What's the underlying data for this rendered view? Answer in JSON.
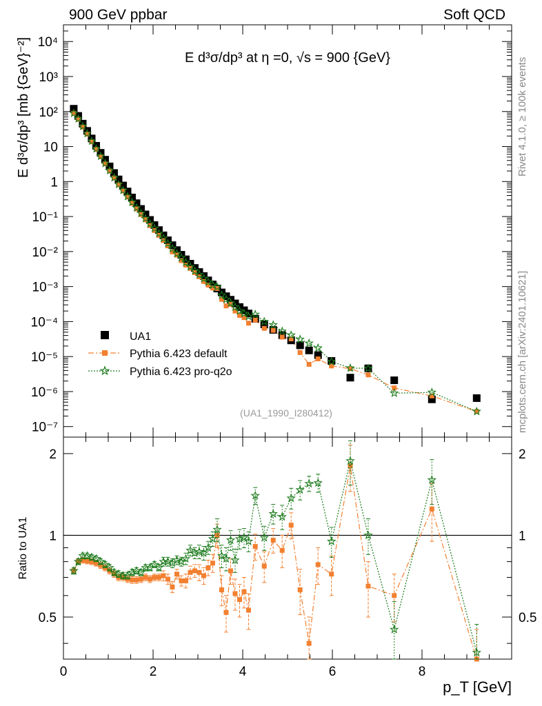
{
  "header": {
    "left": "900 GeV ppbar",
    "right": "Soft QCD"
  },
  "side_labels": {
    "rivet": "Rivet 4.1.0, ≥ 100k events",
    "source": "mcplots.cern.ch [arXiv:2401.10621]"
  },
  "chart_data": [
    {
      "type": "scatter",
      "panel": "main",
      "title": "E d³σ/dp³ at η =0, √s = 900 {GeV}",
      "watermark": "(UA1_1990_I280412)",
      "ylabel": "E d³σ/dp³ [mb {GeV}⁻²]",
      "xlim": [
        0,
        10
      ],
      "ylim": [
        5e-08,
        30000.0
      ],
      "yscale": "log",
      "y_tick_labels": [
        "10⁻⁷",
        "10⁻⁶",
        "10⁻⁵",
        "10⁻⁴",
        "10⁻³",
        "10⁻²",
        "10⁻¹",
        "1",
        "10",
        "10²",
        "10³",
        "10⁴"
      ],
      "y_tick_values": [
        1e-07,
        1e-06,
        1e-05,
        0.0001,
        0.001,
        0.01,
        0.1,
        1,
        10,
        100,
        1000,
        10000
      ],
      "legend_position": "bottom-left",
      "x": [
        0.23,
        0.33,
        0.43,
        0.53,
        0.63,
        0.73,
        0.83,
        0.93,
        1.03,
        1.13,
        1.23,
        1.33,
        1.43,
        1.53,
        1.63,
        1.73,
        1.83,
        1.93,
        2.03,
        2.13,
        2.23,
        2.33,
        2.43,
        2.53,
        2.63,
        2.73,
        2.83,
        2.93,
        3.03,
        3.13,
        3.23,
        3.33,
        3.43,
        3.53,
        3.63,
        3.73,
        3.83,
        3.93,
        4.03,
        4.13,
        4.28,
        4.48,
        4.68,
        4.88,
        5.08,
        5.28,
        5.48,
        5.68,
        5.98,
        6.4,
        6.8,
        7.38,
        8.22,
        9.22
      ],
      "series": [
        {
          "name": "UA1",
          "marker": "square",
          "color": "#000000",
          "values": [
            120,
            75,
            45,
            28,
            17,
            10.5,
            6.6,
            4.2,
            2.7,
            1.75,
            1.15,
            0.77,
            0.52,
            0.35,
            0.24,
            0.165,
            0.115,
            0.08,
            0.057,
            0.041,
            0.029,
            0.021,
            0.0152,
            0.011,
            0.0081,
            0.006,
            0.0045,
            0.0034,
            0.0026,
            0.002,
            0.0015,
            0.00115,
            0.00088,
            0.00068,
            0.00053,
            0.00042,
            0.00033,
            0.00026,
            0.00021,
            0.00017,
            0.00012,
            8.3e-05,
            5.8e-05,
            4.1e-05,
            2.9e-05,
            2.1e-05,
            1.5e-05,
            1.1e-05,
            7.5e-06,
            2.5e-06,
            4.6e-06,
            2.1e-06,
            6e-07,
            6.5e-07
          ]
        },
        {
          "name": "Pythia 6.423 default",
          "marker": "square-small",
          "color": "#f28030",
          "line": "dashdot",
          "values": [
            89,
            60,
            36,
            22.6,
            13.6,
            8.3,
            5.1,
            3.2,
            2.0,
            1.26,
            0.81,
            0.54,
            0.36,
            0.24,
            0.165,
            0.114,
            0.081,
            0.055,
            0.04,
            0.029,
            0.0206,
            0.0145,
            0.0098,
            0.0079,
            0.0055,
            0.0041,
            0.0033,
            0.0025,
            0.0019,
            0.0014,
            0.0011,
            0.00091,
            0.00088,
            0.00043,
            0.00028,
            0.00031,
            0.0002,
            0.00015,
            0.00013,
            9e-05,
            0.00011,
            6.4e-05,
            5.6e-05,
            3.6e-05,
            3.2e-05,
            1.3e-05,
            6e-06,
            8.6e-06,
            5.4e-06,
            4.5e-06,
            3e-06,
            1.27e-06,
            7.5e-07,
            2.7e-07
          ],
          "ratio": [
            0.74,
            0.8,
            0.81,
            0.805,
            0.8,
            0.79,
            0.775,
            0.76,
            0.74,
            0.72,
            0.7,
            0.7,
            0.69,
            0.685,
            0.685,
            0.69,
            0.7,
            0.69,
            0.7,
            0.7,
            0.71,
            0.69,
            0.645,
            0.72,
            0.68,
            0.68,
            0.73,
            0.74,
            0.73,
            0.71,
            0.76,
            0.79,
            1.0,
            0.63,
            0.52,
            0.74,
            0.61,
            0.58,
            0.62,
            0.53,
            0.91,
            0.77,
            0.96,
            0.88,
            1.09,
            0.63,
            0.4,
            0.78,
            0.72,
            1.8,
            0.65,
            0.6,
            1.25,
            0.35
          ],
          "ratio_err": [
            0.02,
            0.02,
            0.02,
            0.02,
            0.02,
            0.02,
            0.02,
            0.02,
            0.02,
            0.02,
            0.02,
            0.02,
            0.02,
            0.02,
            0.02,
            0.02,
            0.02,
            0.02,
            0.02,
            0.02,
            0.03,
            0.03,
            0.03,
            0.03,
            0.03,
            0.04,
            0.04,
            0.04,
            0.05,
            0.05,
            0.05,
            0.06,
            0.1,
            0.08,
            0.08,
            0.08,
            0.08,
            0.08,
            0.08,
            0.08,
            0.1,
            0.1,
            0.1,
            0.12,
            0.12,
            0.12,
            0.1,
            0.12,
            0.12,
            0.35,
            0.15,
            0.12,
            0.3,
            0.1
          ]
        },
        {
          "name": "Pythia 6.423 pro-q2o",
          "marker": "star",
          "color": "#1a7a1a",
          "line": "dotted",
          "values": [
            89,
            62,
            38,
            23.6,
            14.3,
            8.6,
            5.3,
            3.3,
            2.06,
            1.28,
            0.83,
            0.56,
            0.375,
            0.255,
            0.178,
            0.124,
            0.088,
            0.062,
            0.046,
            0.033,
            0.024,
            0.017,
            0.0122,
            0.0088,
            0.0067,
            0.0049,
            0.0037,
            0.0028,
            0.0022,
            0.0017,
            0.00135,
            0.0011,
            0.00098,
            0.00057,
            0.00043,
            0.00034,
            0.00026,
            0.0002,
            0.00017,
            0.00014,
            0.00016,
            0.0001,
            8e-05,
            5.3e-05,
            4.1e-05,
            3.1e-05,
            2.4e-05,
            1.75e-05,
            7.2e-06,
            4.7e-06,
            4.6e-06,
            9e-07,
            9.5e-07,
            2.7e-07
          ],
          "ratio": [
            0.74,
            0.8,
            0.84,
            0.84,
            0.83,
            0.82,
            0.8,
            0.78,
            0.76,
            0.73,
            0.72,
            0.71,
            0.71,
            0.73,
            0.74,
            0.73,
            0.76,
            0.76,
            0.78,
            0.76,
            0.8,
            0.8,
            0.79,
            0.81,
            0.8,
            0.82,
            0.88,
            0.86,
            0.87,
            0.86,
            0.9,
            0.97,
            1.05,
            0.84,
            0.82,
            0.96,
            0.81,
            0.97,
            0.98,
            0.95,
            1.4,
            0.98,
            1.2,
            1.17,
            1.37,
            1.47,
            1.55,
            1.56,
            0.95,
            1.88,
            1.0,
            0.45,
            1.6,
            0.37
          ],
          "ratio_err": [
            0.02,
            0.02,
            0.02,
            0.02,
            0.02,
            0.02,
            0.02,
            0.02,
            0.02,
            0.02,
            0.02,
            0.02,
            0.02,
            0.02,
            0.02,
            0.02,
            0.02,
            0.02,
            0.02,
            0.02,
            0.03,
            0.03,
            0.03,
            0.03,
            0.03,
            0.04,
            0.04,
            0.04,
            0.05,
            0.05,
            0.05,
            0.06,
            0.1,
            0.08,
            0.08,
            0.08,
            0.08,
            0.08,
            0.08,
            0.08,
            0.1,
            0.1,
            0.1,
            0.12,
            0.12,
            0.12,
            0.1,
            0.12,
            0.12,
            0.35,
            0.15,
            0.12,
            0.3,
            0.1
          ]
        }
      ]
    },
    {
      "type": "line",
      "panel": "ratio",
      "ylabel": "Ratio to UA1",
      "xlabel": "p_T [GeV]",
      "xlim": [
        0,
        10
      ],
      "ylim": [
        0.35,
        2.3
      ],
      "x_tick_labels": [
        "0",
        "2",
        "4",
        "6",
        "8"
      ],
      "x_tick_values": [
        0,
        2,
        4,
        6,
        8
      ],
      "y_tick_labels": [
        "0.5",
        "1",
        "2"
      ],
      "y_tick_values": [
        0.5,
        1,
        2
      ],
      "reference_line": 1
    }
  ]
}
